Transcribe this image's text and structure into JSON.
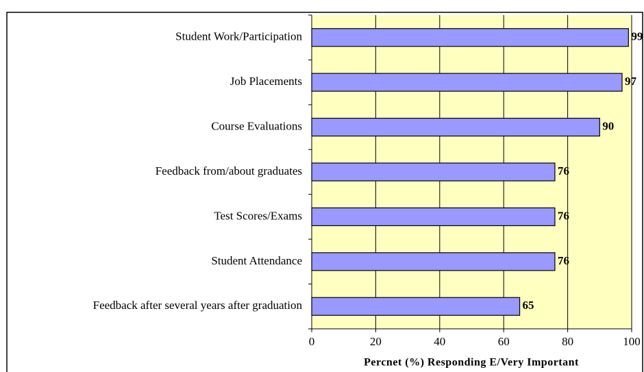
{
  "chart_data": {
    "type": "hbar",
    "categories": [
      "Student Work/Participation",
      "Job Placements",
      "Course Evaluations",
      "Feedback from/about graduates",
      "Test Scores/Exams",
      "Student Attendance",
      "Feedback after several years after graduation"
    ],
    "values": [
      99,
      97,
      90,
      76,
      76,
      76,
      65
    ],
    "color": "#9999ff",
    "xlabel": "Percnet (%) Responding E/Very Important",
    "xlim": [
      0,
      100
    ],
    "xticks": [
      0,
      20,
      40,
      60,
      80,
      100
    ],
    "grid": true
  }
}
